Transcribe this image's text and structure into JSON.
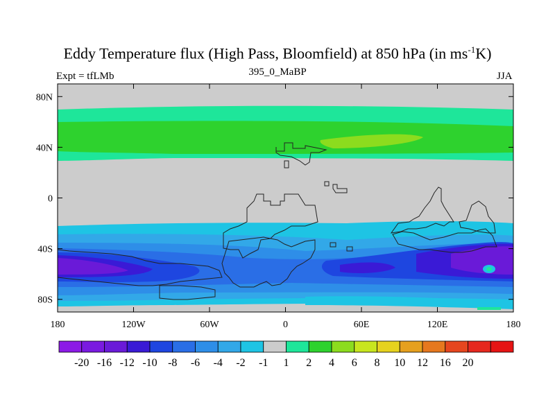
{
  "title_main": "Eddy Temperature flux (High Pass, Bloomfield) at 850 hPa (in ms",
  "title_sup": "-1",
  "title_end": "K)",
  "experiment": "Expt = tfLMb",
  "case": "395_0_MaBP",
  "season": "JJA",
  "map": {
    "lon_range": [
      -180,
      180
    ],
    "lat_range": [
      -90,
      90
    ],
    "x_ticks": [
      {
        "lon": -180,
        "label": "180"
      },
      {
        "lon": -120,
        "label": "120W"
      },
      {
        "lon": -60,
        "label": "60W"
      },
      {
        "lon": 0,
        "label": "0"
      },
      {
        "lon": 60,
        "label": "60E"
      },
      {
        "lon": 120,
        "label": "120E"
      },
      {
        "lon": 180,
        "label": "180"
      }
    ],
    "y_ticks": [
      {
        "lat": 80,
        "label": "80N"
      },
      {
        "lat": 40,
        "label": "40N"
      },
      {
        "lat": 0,
        "label": "0"
      },
      {
        "lat": -40,
        "label": "40S"
      },
      {
        "lat": -80,
        "label": "80S"
      }
    ]
  },
  "colorbar": {
    "colors": [
      "#8c1ae6",
      "#7a1ae0",
      "#6a1ad8",
      "#3a1ad6",
      "#1e46e0",
      "#2a6ee6",
      "#2e8ee8",
      "#32a8e8",
      "#1ec4e4",
      "#cccccc",
      "#1ee69a",
      "#2ed22e",
      "#8cdc1e",
      "#c8e61e",
      "#e6d21e",
      "#e6a01e",
      "#e6781e",
      "#e6461e",
      "#e6281e",
      "#e61414"
    ],
    "labels": [
      "-20",
      "-16",
      "-12",
      "-10",
      "-8",
      "-6",
      "-4",
      "-2",
      "-1",
      "1",
      "2",
      "4",
      "6",
      "8",
      "10",
      "12",
      "16",
      "20"
    ]
  }
}
